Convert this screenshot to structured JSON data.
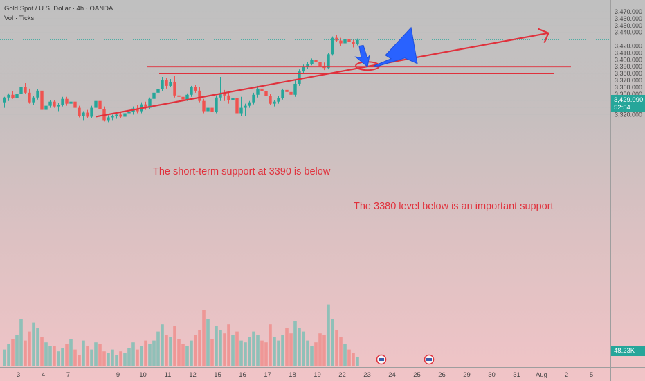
{
  "header": {
    "symbol_line": "Gold Spot / U.S. Dollar · 4h · OANDA",
    "indicator_line": "Vol · Ticks"
  },
  "price_axis": {
    "labels": [
      "3,470.000",
      "3,460.000",
      "3,450.000",
      "3,440.000",
      "3,420.000",
      "3,410.000",
      "3,400.000",
      "3,390.000",
      "3,380.000",
      "3,370.000",
      "3,360.000",
      "3,350.000",
      "3,340.000",
      "3,330.000",
      "3,320.000"
    ],
    "label_values": [
      3470,
      3460,
      3450,
      3440,
      3420,
      3410,
      3400,
      3390,
      3380,
      3370,
      3360,
      3350,
      3340,
      3330,
      3320
    ]
  },
  "current_price": {
    "value": 3429.09,
    "label": "3,429.090",
    "countdown": "52:54"
  },
  "volume_tag": {
    "label": "48.23K"
  },
  "time_axis": {
    "labels": [
      "3",
      "4",
      "7",
      "9",
      "10",
      "11",
      "12",
      "15",
      "16",
      "17",
      "18",
      "19",
      "22",
      "23",
      "24",
      "25",
      "26",
      "29",
      "30",
      "31",
      "Aug",
      "2",
      "5"
    ],
    "label_x_index": [
      0,
      6,
      12,
      24,
      30,
      36,
      42,
      48,
      54,
      60,
      66,
      72,
      78,
      84,
      90,
      96,
      102,
      108,
      114,
      120,
      126,
      132,
      138
    ]
  },
  "annotations": {
    "support_3390_text": "The short-term support at 3390 is below",
    "support_3380_text": "The 3380 level below is an important support"
  },
  "colors": {
    "up": "#26a69a",
    "down": "#ef5350",
    "annotation": "#e0313c",
    "arrow_blue": "#2962ff",
    "price_tag": "#26a69a"
  },
  "chart_data": {
    "type": "candlestick",
    "ylim": [
      3314,
      3477
    ],
    "candles": [
      [
        3338,
        3346,
        3330,
        3345
      ],
      [
        3345,
        3351,
        3340,
        3349
      ],
      [
        3349,
        3354,
        3343,
        3344
      ],
      [
        3344,
        3352,
        3343,
        3350
      ],
      [
        3350,
        3362,
        3348,
        3360
      ],
      [
        3360,
        3366,
        3350,
        3352
      ],
      [
        3352,
        3358,
        3336,
        3338
      ],
      [
        3338,
        3347,
        3334,
        3345
      ],
      [
        3345,
        3357,
        3342,
        3355
      ],
      [
        3355,
        3359,
        3325,
        3327
      ],
      [
        3327,
        3335,
        3322,
        3333
      ],
      [
        3333,
        3341,
        3330,
        3339
      ],
      [
        3339,
        3341,
        3330,
        3332
      ],
      [
        3332,
        3337,
        3325,
        3334
      ],
      [
        3334,
        3346,
        3332,
        3343
      ],
      [
        3343,
        3346,
        3333,
        3336
      ],
      [
        3336,
        3341,
        3330,
        3339
      ],
      [
        3339,
        3344,
        3328,
        3330
      ],
      [
        3330,
        3333,
        3316,
        3318
      ],
      [
        3318,
        3325,
        3312,
        3323
      ],
      [
        3323,
        3327,
        3315,
        3317
      ],
      [
        3317,
        3333,
        3315,
        3330
      ],
      [
        3330,
        3343,
        3328,
        3340
      ],
      [
        3340,
        3344,
        3325,
        3328
      ],
      [
        3328,
        3332,
        3310,
        3312
      ],
      [
        3312,
        3319,
        3309,
        3316
      ],
      [
        3316,
        3320,
        3312,
        3318
      ],
      [
        3318,
        3321,
        3314,
        3320
      ],
      [
        3320,
        3323,
        3315,
        3317
      ],
      [
        3317,
        3323,
        3315,
        3322
      ],
      [
        3322,
        3326,
        3318,
        3324
      ],
      [
        3324,
        3332,
        3320,
        3329
      ],
      [
        3329,
        3334,
        3322,
        3325
      ],
      [
        3325,
        3338,
        3322,
        3335
      ],
      [
        3335,
        3339,
        3327,
        3330
      ],
      [
        3330,
        3345,
        3328,
        3343
      ],
      [
        3343,
        3355,
        3340,
        3352
      ],
      [
        3352,
        3360,
        3348,
        3357
      ],
      [
        3357,
        3375,
        3354,
        3370
      ],
      [
        3370,
        3374,
        3358,
        3362
      ],
      [
        3362,
        3372,
        3360,
        3368
      ],
      [
        3368,
        3376,
        3345,
        3348
      ],
      [
        3348,
        3352,
        3338,
        3346
      ],
      [
        3346,
        3350,
        3336,
        3342
      ],
      [
        3342,
        3351,
        3340,
        3349
      ],
      [
        3349,
        3362,
        3346,
        3360
      ],
      [
        3360,
        3364,
        3352,
        3355
      ],
      [
        3355,
        3360,
        3338,
        3340
      ],
      [
        3340,
        3343,
        3322,
        3325
      ],
      [
        3325,
        3333,
        3322,
        3330
      ],
      [
        3330,
        3336,
        3322,
        3324
      ],
      [
        3324,
        3348,
        3322,
        3345
      ],
      [
        3345,
        3375,
        3340,
        3350
      ],
      [
        3350,
        3356,
        3340,
        3348
      ],
      [
        3348,
        3354,
        3336,
        3341
      ],
      [
        3341,
        3346,
        3335,
        3344
      ],
      [
        3344,
        3347,
        3320,
        3322
      ],
      [
        3322,
        3346,
        3318,
        3330
      ],
      [
        3330,
        3336,
        3318,
        3333
      ],
      [
        3333,
        3340,
        3330,
        3338
      ],
      [
        3338,
        3352,
        3335,
        3349
      ],
      [
        3349,
        3362,
        3345,
        3358
      ],
      [
        3358,
        3362,
        3351,
        3354
      ],
      [
        3354,
        3359,
        3344,
        3347
      ],
      [
        3347,
        3350,
        3334,
        3336
      ],
      [
        3336,
        3341,
        3332,
        3339
      ],
      [
        3339,
        3347,
        3336,
        3344
      ],
      [
        3344,
        3358,
        3342,
        3356
      ],
      [
        3356,
        3362,
        3350,
        3353
      ],
      [
        3353,
        3357,
        3346,
        3349
      ],
      [
        3349,
        3370,
        3346,
        3365
      ],
      [
        3365,
        3386,
        3362,
        3383
      ],
      [
        3383,
        3393,
        3380,
        3390
      ],
      [
        3390,
        3397,
        3387,
        3394
      ],
      [
        3394,
        3402,
        3392,
        3400
      ],
      [
        3400,
        3403,
        3394,
        3397
      ],
      [
        3397,
        3399,
        3386,
        3391
      ],
      [
        3391,
        3396,
        3385,
        3388
      ],
      [
        3388,
        3410,
        3386,
        3408
      ],
      [
        3408,
        3434,
        3406,
        3432
      ],
      [
        3432,
        3436,
        3426,
        3428
      ],
      [
        3428,
        3432,
        3420,
        3424
      ],
      [
        3424,
        3440,
        3422,
        3430
      ],
      [
        3430,
        3434,
        3420,
        3426
      ],
      [
        3426,
        3430,
        3418,
        3423
      ],
      [
        3423,
        3431,
        3421,
        3429
      ]
    ],
    "volumes": [
      9,
      12,
      15,
      17,
      26,
      14,
      19,
      24,
      21,
      16,
      13,
      11,
      11,
      8,
      10,
      12,
      15,
      9,
      6,
      14,
      11,
      9,
      13,
      12,
      8,
      7,
      9,
      6,
      8,
      7,
      10,
      13,
      9,
      11,
      14,
      12,
      14,
      19,
      23,
      17,
      16,
      22,
      15,
      12,
      11,
      14,
      17,
      20,
      31,
      26,
      15,
      22,
      20,
      18,
      23,
      17,
      19,
      14,
      13,
      16,
      19,
      17,
      14,
      13,
      23,
      16,
      14,
      17,
      21,
      18,
      25,
      21,
      19,
      14,
      11,
      13,
      18,
      17,
      34,
      26,
      20,
      16,
      12,
      9,
      7,
      5
    ],
    "trend_line": {
      "from": [
        3317,
        22
      ],
      "to": [
        3439,
        131
      ]
    },
    "support_levels": [
      3390,
      3380
    ],
    "arrows": [
      {
        "shape": "wide-up",
        "from_price": 3391,
        "to_price": 3447
      },
      {
        "shape": "down",
        "from_price": 3420,
        "to_price": 3390
      }
    ]
  }
}
